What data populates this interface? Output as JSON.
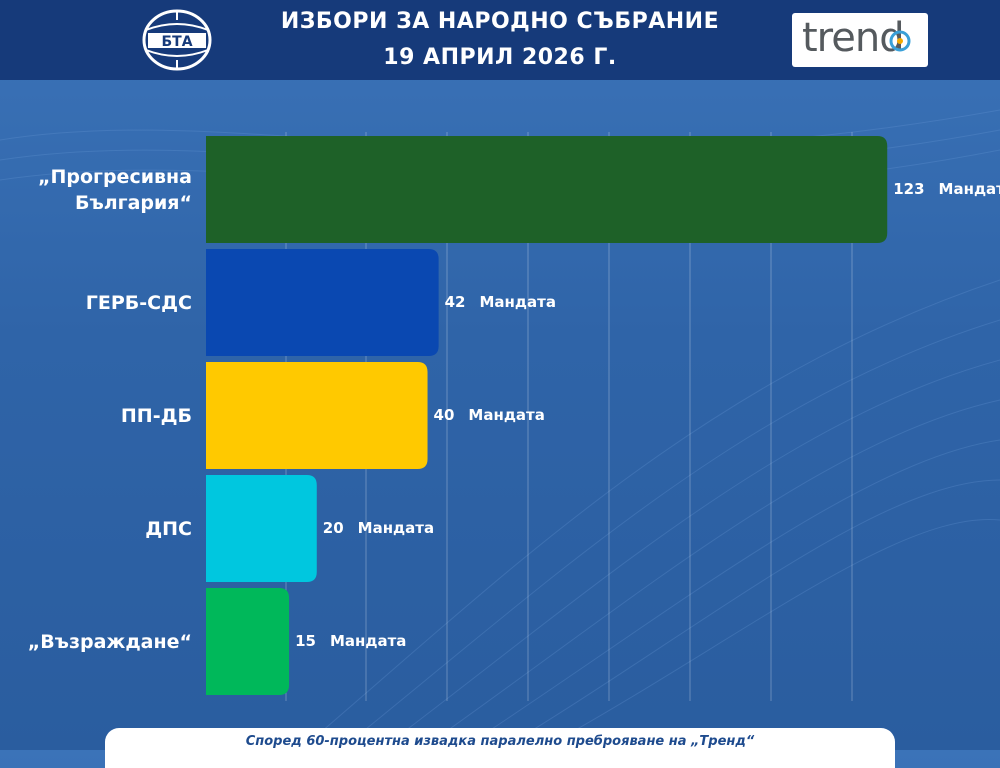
{
  "header": {
    "title_line1": "ИЗБОРИ ЗА НАРОДНО СЪБРАНИЕ",
    "title_line2": "19 АПРИЛ 2026 Г.",
    "left_logo_text": "БТА",
    "right_logo_text": "trend"
  },
  "colors": {
    "header_bg": "#163a7a",
    "background": "#3067ac"
  },
  "chart_data": {
    "type": "bar",
    "orientation": "horizontal",
    "categories": [
      "„Прогресивна България“",
      "ГЕРБ-СДС",
      "ПП-ДБ",
      "ДПС",
      "„Възраждане“"
    ],
    "label_lines": [
      [
        "„Прогресивна",
        "България“"
      ],
      [
        "ГЕРБ-СДС"
      ],
      [
        "ПП-ДБ"
      ],
      [
        "ДПС"
      ],
      [
        "„Възраждане“"
      ]
    ],
    "values": [
      123,
      42,
      40,
      20,
      15
    ],
    "value_suffix": "Мандата",
    "colors": [
      "#1e6128",
      "#0a48b1",
      "#ffc900",
      "#00c7df",
      "#00b85a"
    ],
    "xlim": [
      0,
      130
    ],
    "grid": true,
    "title": "",
    "xlabel": "",
    "ylabel": ""
  },
  "footer": {
    "note": "Според 60-процентна извадка паралелно преброяване на „Тренд“"
  }
}
